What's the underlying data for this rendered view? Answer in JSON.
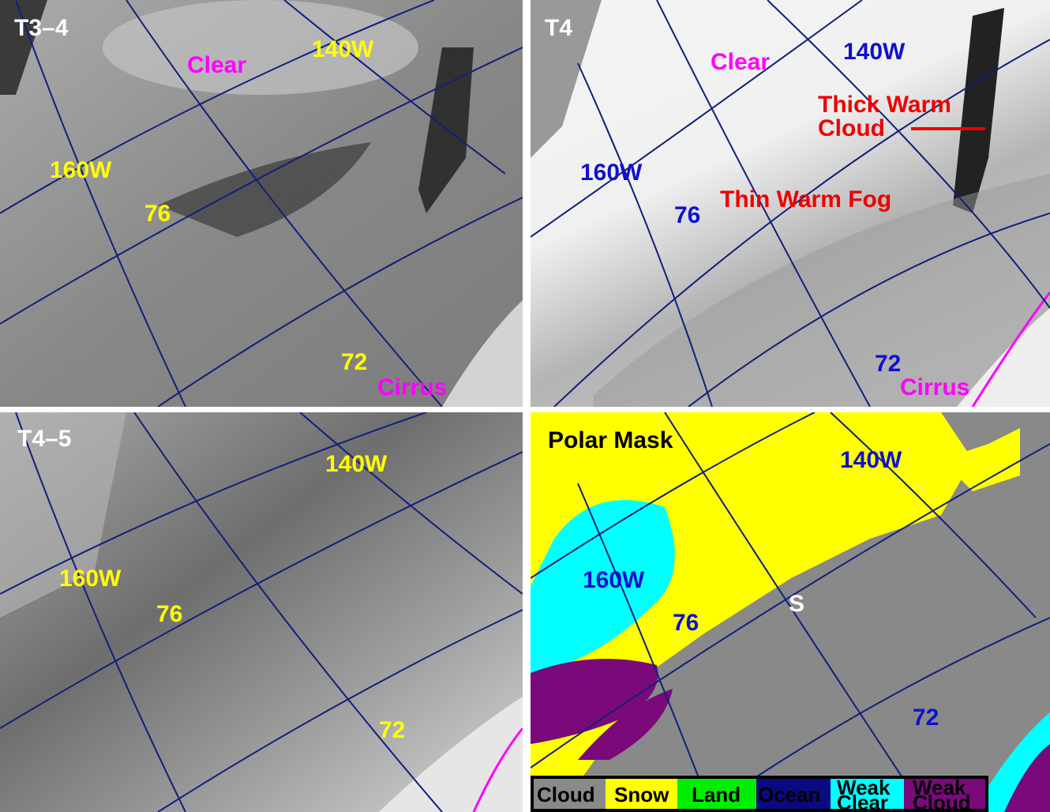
{
  "panels": [
    {
      "title": "T3–4",
      "labels": [
        "Clear",
        "140W",
        "160W",
        "76",
        "72",
        "Cirrus"
      ]
    },
    {
      "title": "T4",
      "labels": [
        "Clear",
        "140W",
        "Thick Warm",
        "Cloud",
        "160W",
        "76",
        "Thin Warm Fog",
        "72",
        "Cirrus"
      ]
    },
    {
      "title": "T4–5",
      "labels": [
        "140W",
        "160W",
        "76",
        "72"
      ]
    },
    {
      "title": "Polar Mask",
      "labels": [
        "140W",
        "160W",
        "76",
        "S",
        "72"
      ]
    }
  ],
  "legend": [
    [
      "Cloud"
    ],
    [
      "Snow"
    ],
    [
      "Land"
    ],
    [
      "Ocean"
    ],
    [
      "Weak",
      "Clear"
    ],
    [
      "Weak",
      "Cloud"
    ]
  ]
}
